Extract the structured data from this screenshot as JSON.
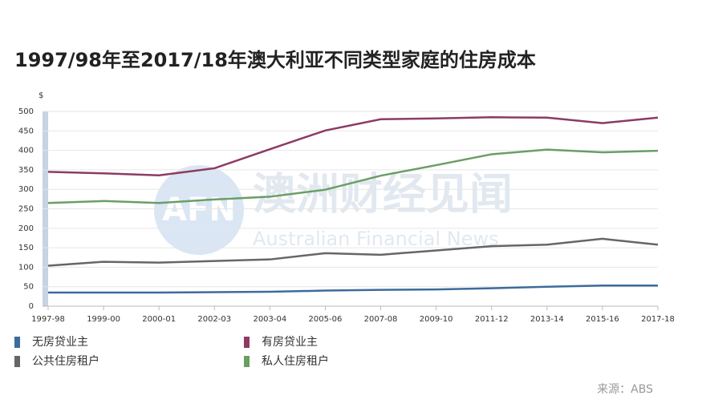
{
  "chart_data": {
    "type": "line",
    "title": "1997/98年至2017/18年澳大利亚不同类型家庭的住房成本",
    "y_label": "$",
    "categories": [
      "1997-98",
      "1999-00",
      "2000-01",
      "2002-03",
      "2003-04",
      "2005-06",
      "2007-08",
      "2009-10",
      "2011-12",
      "2013-14",
      "2015-16",
      "2017-18"
    ],
    "series": [
      {
        "name": "无房贷业主",
        "color": "#3d6b9c",
        "values": [
          35,
          35,
          35,
          36,
          37,
          40,
          42,
          43,
          46,
          50,
          53,
          53
        ]
      },
      {
        "name": "有房贷业主",
        "color": "#8c3b63",
        "values": [
          345,
          341,
          336,
          354,
          403,
          451,
          480,
          482,
          485,
          484,
          470,
          484
        ]
      },
      {
        "name": "公共住房租户",
        "color": "#666666",
        "values": [
          104,
          114,
          112,
          116,
          120,
          136,
          132,
          143,
          154,
          158,
          173,
          158
        ]
      },
      {
        "name": "私人住房租户",
        "color": "#6a9e65",
        "values": [
          265,
          270,
          265,
          274,
          281,
          299,
          335,
          362,
          390,
          402,
          395,
          399
        ]
      }
    ],
    "ylim": [
      0,
      500
    ],
    "yticks": [
      0,
      50,
      100,
      150,
      200,
      250,
      300,
      350,
      400,
      450,
      500
    ],
    "grid": true,
    "watermark": {
      "logo": "AFN",
      "name": "澳洲财经见闻",
      "english": "Australian Financial News"
    },
    "source": "来源：ABS"
  }
}
